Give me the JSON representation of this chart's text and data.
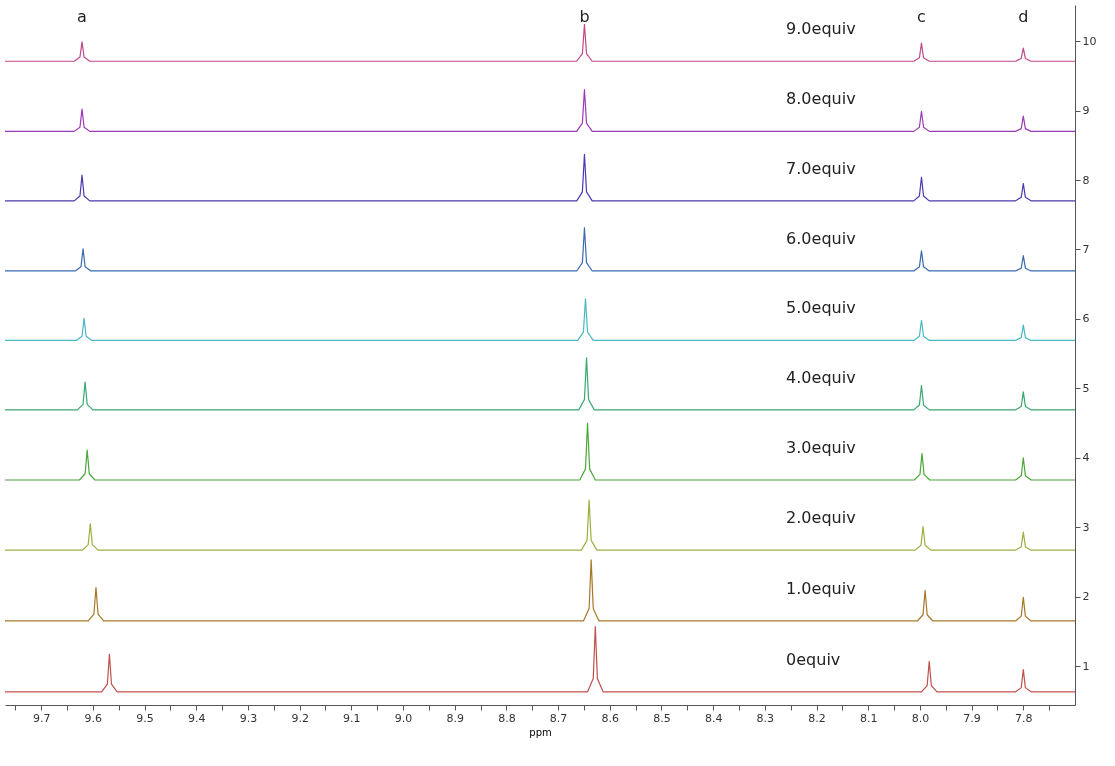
{
  "chart_data": {
    "type": "line",
    "xlabel": "ppm",
    "xlim": [
      9.77,
      7.7
    ],
    "ylim": [
      0.44,
      10.52
    ],
    "xticks": [
      {
        "value": 9.75,
        "label": null
      },
      9.7,
      {
        "value": 9.65,
        "label": null
      },
      9.6,
      {
        "value": 9.55,
        "label": null
      },
      9.5,
      {
        "value": 9.45,
        "label": null
      },
      9.4,
      {
        "value": 9.35,
        "label": null
      },
      9.3,
      {
        "value": 9.25,
        "label": null
      },
      9.2,
      {
        "value": 9.15,
        "label": null
      },
      9.1,
      {
        "value": 9.05,
        "label": null
      },
      {
        "value": 9.0,
        "label": "9.0"
      },
      {
        "value": 8.95,
        "label": null
      },
      8.9,
      {
        "value": 8.85,
        "label": null
      },
      8.8,
      {
        "value": 8.75,
        "label": null
      },
      8.7,
      {
        "value": 8.65,
        "label": null
      },
      8.6,
      {
        "value": 8.55,
        "label": null
      },
      8.5,
      {
        "value": 8.45,
        "label": null
      },
      8.4,
      {
        "value": 8.35,
        "label": null
      },
      8.3,
      {
        "value": 8.25,
        "label": null
      },
      8.2,
      {
        "value": 8.15,
        "label": null
      },
      8.1,
      {
        "value": 8.05,
        "label": null
      },
      {
        "value": 8.0,
        "label": "8.0"
      },
      {
        "value": 7.95,
        "label": null
      },
      7.9,
      {
        "value": 7.85,
        "label": null
      },
      7.8,
      {
        "value": 7.75,
        "label": null
      }
    ],
    "yticks": [
      1,
      2,
      3,
      4,
      5,
      6,
      7,
      8,
      9,
      10
    ],
    "grid": false,
    "marker": "none",
    "line_style": "solid",
    "annotations": [
      "a",
      "b",
      "c",
      "d"
    ],
    "series": [
      {
        "name": "0equiv",
        "color": "#c0504d",
        "x": [
          9.77,
          9.583,
          9.572,
          9.568,
          9.564,
          9.553,
          8.643,
          8.632,
          8.628,
          8.624,
          8.613,
          7.997,
          7.986,
          7.982,
          7.978,
          7.967,
          7.815,
          7.804,
          7.8,
          7.796,
          7.785,
          7.7
        ],
        "values": [
          0.63,
          0.63,
          0.74,
          1.17,
          0.74,
          0.63,
          0.63,
          0.82,
          1.57,
          0.82,
          0.63,
          0.63,
          0.72,
          1.07,
          0.72,
          0.63,
          0.63,
          0.69,
          0.95,
          0.69,
          0.63,
          0.63
        ]
      },
      {
        "name": "1.0equiv",
        "color": "#a8782a",
        "x": [
          9.77,
          9.609,
          9.598,
          9.594,
          9.59,
          9.579,
          8.651,
          8.64,
          8.636,
          8.632,
          8.621,
          8.005,
          7.994,
          7.99,
          7.986,
          7.975,
          7.815,
          7.804,
          7.8,
          7.796,
          7.785,
          7.7
        ],
        "values": [
          1.65,
          1.65,
          1.75,
          2.13,
          1.75,
          1.65,
          1.65,
          1.83,
          2.53,
          1.83,
          1.65,
          1.65,
          1.74,
          2.09,
          1.74,
          1.65,
          1.65,
          1.72,
          1.99,
          1.72,
          1.65,
          1.65
        ]
      },
      {
        "name": "2.0equiv",
        "color": "#9cb040",
        "x": [
          9.77,
          9.62,
          9.609,
          9.605,
          9.601,
          9.59,
          8.655,
          8.644,
          8.64,
          8.636,
          8.625,
          8.009,
          7.998,
          7.994,
          7.99,
          7.979,
          7.815,
          7.804,
          7.8,
          7.796,
          7.785,
          7.7
        ],
        "values": [
          2.67,
          2.67,
          2.75,
          3.05,
          2.75,
          2.67,
          2.67,
          2.81,
          3.39,
          2.81,
          2.67,
          2.67,
          2.74,
          3.01,
          2.74,
          2.67,
          2.67,
          2.72,
          2.93,
          2.72,
          2.67,
          2.67
        ]
      },
      {
        "name": "3.0equiv",
        "color": "#4aa83a",
        "x": [
          9.77,
          9.626,
          9.615,
          9.611,
          9.607,
          9.596,
          8.658,
          8.647,
          8.643,
          8.639,
          8.628,
          8.011,
          8.0,
          7.996,
          7.992,
          7.981,
          7.815,
          7.804,
          7.8,
          7.796,
          7.785,
          7.7
        ],
        "values": [
          3.68,
          3.68,
          3.77,
          4.11,
          3.77,
          3.68,
          3.68,
          3.84,
          4.5,
          3.84,
          3.68,
          3.68,
          3.76,
          4.06,
          3.76,
          3.68,
          3.68,
          3.74,
          4.0,
          3.74,
          3.68,
          3.68
        ]
      },
      {
        "name": "4.0equiv",
        "color": "#3aa870",
        "x": [
          9.77,
          9.63,
          9.619,
          9.615,
          9.611,
          9.6,
          8.66,
          8.649,
          8.645,
          8.641,
          8.63,
          8.012,
          8.001,
          7.997,
          7.993,
          7.982,
          7.815,
          7.804,
          7.8,
          7.796,
          7.785,
          7.7
        ],
        "values": [
          4.69,
          4.69,
          4.77,
          5.09,
          4.77,
          4.69,
          4.69,
          4.84,
          5.44,
          4.84,
          4.69,
          4.69,
          4.76,
          5.04,
          4.76,
          4.69,
          4.69,
          4.74,
          4.95,
          4.74,
          4.69,
          4.69
        ]
      },
      {
        "name": "5.0equiv",
        "color": "#4ab8c0",
        "x": [
          9.77,
          9.632,
          9.621,
          9.617,
          9.613,
          9.602,
          8.662,
          8.651,
          8.647,
          8.643,
          8.632,
          8.012,
          8.001,
          7.997,
          7.993,
          7.982,
          7.815,
          7.804,
          7.8,
          7.796,
          7.785,
          7.7
        ],
        "values": [
          5.69,
          5.69,
          5.75,
          6.01,
          5.75,
          5.69,
          5.69,
          5.81,
          6.29,
          5.81,
          5.69,
          5.69,
          5.75,
          5.98,
          5.75,
          5.69,
          5.69,
          5.73,
          5.91,
          5.73,
          5.69,
          5.69
        ]
      },
      {
        "name": "6.0equiv",
        "color": "#3a6ab0",
        "x": [
          9.77,
          9.634,
          9.623,
          9.619,
          9.615,
          9.604,
          8.664,
          8.653,
          8.649,
          8.645,
          8.634,
          8.012,
          8.001,
          7.997,
          7.993,
          7.982,
          7.815,
          7.804,
          7.8,
          7.796,
          7.785,
          7.7
        ],
        "values": [
          6.69,
          6.69,
          6.75,
          7.01,
          6.75,
          6.69,
          6.69,
          6.81,
          7.31,
          6.81,
          6.69,
          6.69,
          6.75,
          6.98,
          6.75,
          6.69,
          6.69,
          6.73,
          6.91,
          6.73,
          6.69,
          6.69
        ]
      },
      {
        "name": "7.0equiv",
        "color": "#4a3ab0",
        "x": [
          9.77,
          9.636,
          9.625,
          9.621,
          9.617,
          9.606,
          8.664,
          8.653,
          8.649,
          8.645,
          8.634,
          8.012,
          8.001,
          7.997,
          7.993,
          7.982,
          7.815,
          7.804,
          7.8,
          7.796,
          7.785,
          7.7
        ],
        "values": [
          7.7,
          7.7,
          7.77,
          8.07,
          7.77,
          7.7,
          7.7,
          7.83,
          8.37,
          7.83,
          7.7,
          7.7,
          7.77,
          8.04,
          7.77,
          7.7,
          7.7,
          7.75,
          7.95,
          7.75,
          7.7,
          7.7
        ]
      },
      {
        "name": "8.0equiv",
        "color": "#9a3ab8",
        "x": [
          9.77,
          9.636,
          9.625,
          9.621,
          9.617,
          9.606,
          8.664,
          8.653,
          8.649,
          8.645,
          8.634,
          8.012,
          8.001,
          7.997,
          7.993,
          7.982,
          7.815,
          7.804,
          7.8,
          7.796,
          7.785,
          7.7
        ],
        "values": [
          8.7,
          8.7,
          8.76,
          9.02,
          8.76,
          8.7,
          8.7,
          8.82,
          9.3,
          8.82,
          8.7,
          8.7,
          8.76,
          8.99,
          8.76,
          8.7,
          8.7,
          8.74,
          8.92,
          8.74,
          8.7,
          8.7
        ]
      },
      {
        "name": "9.0equiv",
        "color": "#c04a8a",
        "x": [
          9.77,
          9.636,
          9.625,
          9.621,
          9.617,
          9.606,
          8.664,
          8.653,
          8.649,
          8.645,
          8.634,
          8.012,
          8.001,
          7.997,
          7.993,
          7.982,
          7.815,
          7.804,
          7.8,
          7.796,
          7.785,
          7.7
        ],
        "values": [
          9.71,
          9.71,
          9.77,
          9.99,
          9.77,
          9.71,
          9.71,
          9.82,
          10.24,
          9.82,
          9.71,
          9.71,
          9.76,
          9.97,
          9.76,
          9.71,
          9.71,
          9.75,
          9.9,
          9.75,
          9.71,
          9.71
        ]
      }
    ]
  }
}
